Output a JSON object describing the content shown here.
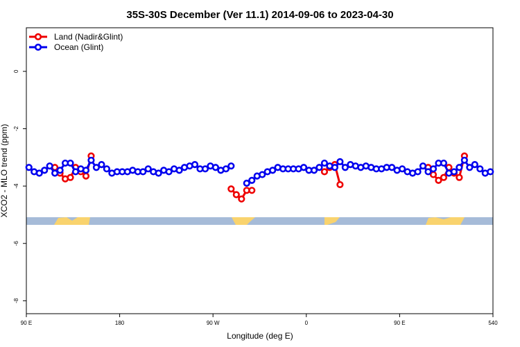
{
  "chart_data": {
    "type": "line",
    "title": "35S-30S December (Ver 11.1)   2014-09-06 to 2023-04-30",
    "xlabel": "Longitude (deg E)",
    "ylabel": "XCO2 - MLO trend (ppm)",
    "xlim": [
      90,
      540
    ],
    "xticks": [
      {
        "value": 90,
        "label": "90 E"
      },
      180,
      {
        "value": 270,
        "label": "90 W"
      },
      {
        "value": 360,
        "label": "0"
      },
      {
        "value": 450,
        "label": "90 E"
      },
      540
    ],
    "ylim": [
      -8.45,
      1.52
    ],
    "yticks": [
      0,
      -2,
      -4,
      -6,
      -8
    ],
    "legend": "top-left",
    "series": [
      {
        "name": "Land (Nadir&Glint)",
        "color": "#ee0000",
        "x": [
          117.5,
          122.5,
          127.5,
          132.5,
          137.5,
          142.5,
          147.5,
          152.5,
          null,
          287.5,
          292.5,
          297.5,
          302.5,
          307.5,
          null,
          377.5,
          382.5,
          387.5,
          392.5,
          null,
          477.5,
          482.5,
          487.5,
          492.5,
          497.5,
          502.5,
          507.5,
          512.5
        ],
        "values": [
          -3.35,
          -3.55,
          -3.75,
          -3.7,
          -3.35,
          -3.5,
          -3.65,
          -2.95,
          null,
          -4.1,
          -4.3,
          -4.45,
          -4.15,
          -4.15,
          null,
          -3.5,
          -3.35,
          -3.25,
          -3.95,
          null,
          -3.35,
          -3.6,
          -3.8,
          -3.7,
          -3.35,
          -3.55,
          -3.7,
          -2.95
        ]
      },
      {
        "name": "Ocean (Glint)",
        "color": "#0000ee",
        "x": [
          92.5,
          97.5,
          102.5,
          107.5,
          112.5,
          117.5,
          122.5,
          127.5,
          132.5,
          137.5,
          142.5,
          147.5,
          152.5,
          157.5,
          162.5,
          167.5,
          172.5,
          177.5,
          182.5,
          187.5,
          192.5,
          197.5,
          202.5,
          207.5,
          212.5,
          217.5,
          222.5,
          227.5,
          232.5,
          237.5,
          242.5,
          247.5,
          252.5,
          257.5,
          262.5,
          267.5,
          272.5,
          277.5,
          282.5,
          287.5,
          null,
          302.5,
          307.5,
          312.5,
          317.5,
          322.5,
          327.5,
          332.5,
          337.5,
          342.5,
          347.5,
          352.5,
          357.5,
          362.5,
          367.5,
          372.5,
          377.5,
          382.5,
          387.5,
          392.5,
          397.5,
          402.5,
          407.5,
          412.5,
          417.5,
          422.5,
          427.5,
          432.5,
          437.5,
          442.5,
          447.5,
          452.5,
          457.5,
          462.5,
          467.5,
          472.5,
          477.5,
          482.5,
          487.5,
          492.5,
          497.5,
          502.5,
          507.5,
          512.5,
          517.5,
          522.5,
          527.5,
          532.5,
          537.5
        ],
        "values": [
          -3.35,
          -3.5,
          -3.55,
          -3.45,
          -3.3,
          -3.55,
          -3.45,
          -3.2,
          -3.2,
          -3.5,
          -3.4,
          -3.45,
          -3.1,
          -3.35,
          -3.25,
          -3.4,
          -3.55,
          -3.5,
          -3.5,
          -3.5,
          -3.45,
          -3.5,
          -3.5,
          -3.4,
          -3.5,
          -3.55,
          -3.45,
          -3.5,
          -3.4,
          -3.45,
          -3.35,
          -3.3,
          -3.25,
          -3.4,
          -3.4,
          -3.3,
          -3.35,
          -3.45,
          -3.4,
          -3.3,
          null,
          -3.9,
          -3.8,
          -3.65,
          -3.6,
          -3.5,
          -3.45,
          -3.35,
          -3.4,
          -3.4,
          -3.4,
          -3.4,
          -3.35,
          -3.45,
          -3.45,
          -3.35,
          -3.2,
          -3.3,
          -3.35,
          -3.15,
          -3.35,
          -3.25,
          -3.3,
          -3.35,
          -3.3,
          -3.35,
          -3.4,
          -3.4,
          -3.35,
          -3.35,
          -3.45,
          -3.4,
          -3.5,
          -3.55,
          -3.5,
          -3.3,
          -3.5,
          -3.4,
          -3.2,
          -3.2,
          -3.55,
          -3.5,
          -3.35,
          -3.1,
          -3.35,
          -3.25,
          -3.4,
          -3.55,
          -3.5
        ]
      }
    ]
  }
}
